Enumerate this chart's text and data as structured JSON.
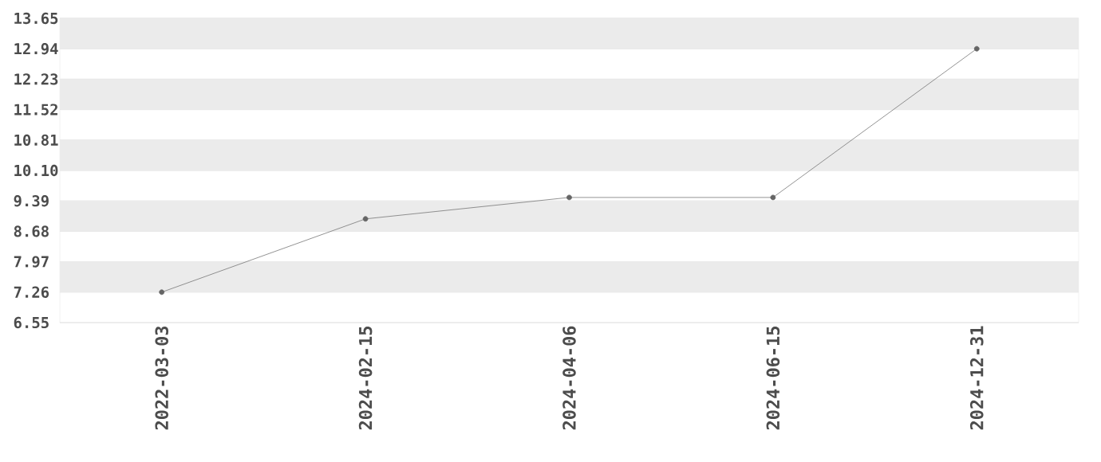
{
  "chart_data": {
    "type": "line",
    "categories": [
      "2022-03-03",
      "2024-02-15",
      "2024-04-06",
      "2024-06-15",
      "2024-12-31"
    ],
    "series": [
      {
        "color": "#777777",
        "values": [
          7.26,
          8.97,
          9.47,
          9.47,
          12.94
        ]
      }
    ],
    "ylim": [
      6.55,
      13.65
    ],
    "yticks": [
      6.55,
      7.26,
      7.97,
      8.68,
      9.39,
      {
        "value": 10.1,
        "label": "10.10"
      },
      10.81,
      11.52,
      12.23,
      12.94,
      13.65
    ],
    "grid": "y",
    "marker": "circle",
    "line_style": "solid"
  }
}
